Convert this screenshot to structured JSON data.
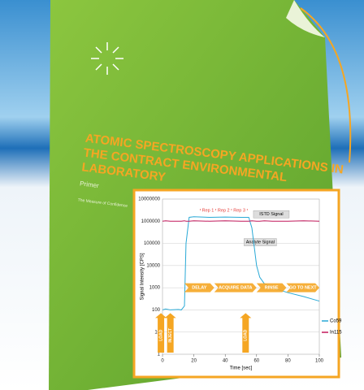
{
  "cover": {
    "title": "ATOMIC SPECTROSCOPY APPLICATIONS IN THE CONTRACT ENVIRONMENTAL LABORATORY",
    "subtitle": "Primer",
    "tagline": "The Measure of Confidence"
  },
  "chart_data": {
    "type": "line",
    "x_label": "Time [sec]",
    "y_label": "Signal Intensity [CPS]",
    "x": [
      0,
      2,
      5,
      10,
      12,
      14,
      15,
      17,
      20,
      30,
      40,
      50,
      55,
      57,
      60,
      62,
      65,
      70,
      80,
      90,
      100
    ],
    "series": [
      {
        "name": "Co59",
        "color": "#29a9d6",
        "values": [
          100,
          110,
          100,
          105,
          100,
          150,
          100000,
          1500000,
          1600000,
          1500000,
          1550000,
          1500000,
          1500000,
          500000,
          10000,
          3000,
          1500,
          1000,
          600,
          400,
          250
        ]
      },
      {
        "name": "In115",
        "color": "#c2185b",
        "values": [
          1000000,
          1050000,
          1000000,
          1000000,
          1000000,
          1050000,
          1000000,
          1000000,
          1050000,
          1000000,
          1050000,
          1000000,
          1000000,
          1050000,
          1000000,
          1000000,
          1050000,
          1000000,
          1000000,
          1050000,
          1000000
        ]
      }
    ],
    "xlim": [
      0,
      100
    ],
    "xticks": [
      0,
      20,
      40,
      60,
      80,
      100
    ],
    "ylim": [
      1,
      10000000
    ],
    "yticks": [
      1,
      10,
      100,
      1000,
      10000,
      100000,
      1000000,
      10000000
    ],
    "log_y": true,
    "grid": true,
    "legend": "right",
    "annotations": [
      "Rep 1",
      "Rep 2",
      "Rep 3",
      "ISTD Signal",
      "Analyte Signal"
    ],
    "phases": [
      "DELAY",
      "ACQUIRE DATA",
      "RINSE",
      "GO TO NEXT"
    ],
    "events": [
      "LOAD",
      "INJECT",
      "LOAD"
    ]
  }
}
